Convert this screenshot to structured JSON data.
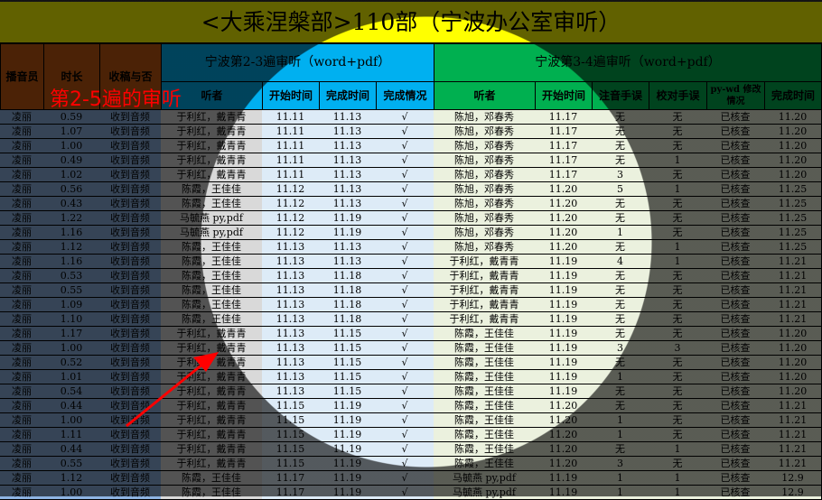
{
  "title": "<大乘涅槃部>110部（宁波办公室审听）",
  "colors": {
    "title_bg": "#ffff00",
    "left_header": "#c55a11",
    "group1_header": "#00b0f0",
    "group2_header": "#00b050",
    "group1_rows": "#ddebf7",
    "group2_rows": "#ebf1de",
    "annotation": "#ff0000"
  },
  "annotation": {
    "text": "第2-5遍的审听",
    "arrow_icon": "red-arrow"
  },
  "headers": {
    "recorder": "播音员",
    "duration": "时长",
    "receipt": "收稿与否",
    "group1": "宁波第2-3遍审听（word+pdf）",
    "group1_cols": [
      "听者",
      "开始时间",
      "完成时间",
      "完成情况"
    ],
    "group2": "宁波第3-4遍审听（word+pdf）",
    "group2_cols": [
      "听者",
      "开始时间",
      "注音手误",
      "校对手误",
      "py-wd 修改情况",
      "完成时间"
    ]
  },
  "rows": [
    [
      "凌丽",
      "0.59",
      "收到音频",
      "于利红，戴青青",
      "11.11",
      "11.13",
      "√",
      "陈旭，邓春秀",
      "11.17",
      "无",
      "无",
      "已核查",
      "11.20"
    ],
    [
      "凌丽",
      "1.07",
      "收到音频",
      "于利红，戴青青",
      "11.11",
      "11.13",
      "√",
      "陈旭，邓春秀",
      "11.17",
      "无",
      "无",
      "已核查",
      "11.20"
    ],
    [
      "凌丽",
      "1.00",
      "收到音频",
      "于利红，戴青青",
      "11.11",
      "11.13",
      "√",
      "陈旭，邓春秀",
      "11.17",
      "无",
      "无",
      "已核查",
      "11.20"
    ],
    [
      "凌丽",
      "0.49",
      "收到音频",
      "于利红，戴青青",
      "11.11",
      "11.13",
      "√",
      "陈旭，邓春秀",
      "11.17",
      "无",
      "1",
      "已核查",
      "11.20"
    ],
    [
      "凌丽",
      "1.02",
      "收到音频",
      "于利红，戴青青",
      "11.11",
      "11.13",
      "√",
      "陈旭，邓春秀",
      "11.17",
      "3",
      "无",
      "已核查",
      "11.20"
    ],
    [
      "凌丽",
      "0.56",
      "收到音频",
      "陈霞，王佳佳",
      "11.12",
      "11.13",
      "√",
      "陈旭，邓春秀",
      "11.20",
      "5",
      "1",
      "已核查",
      "11.25"
    ],
    [
      "凌丽",
      "0.43",
      "收到音频",
      "陈霞，王佳佳",
      "11.12",
      "11.13",
      "√",
      "陈旭，邓春秀",
      "11.20",
      "无",
      "无",
      "已核查",
      "11.25"
    ],
    [
      "凌丽",
      "1.22",
      "收到音频",
      "马毓燕 py,pdf",
      "11.12",
      "11.19",
      "√",
      "陈旭，邓春秀",
      "11.20",
      "无",
      "无",
      "已核查",
      "11.25"
    ],
    [
      "凌丽",
      "1.16",
      "收到音频",
      "马毓燕 py,pdf",
      "11.12",
      "11.19",
      "√",
      "陈旭，邓春秀",
      "11.20",
      "1",
      "无",
      "已核查",
      "11.25"
    ],
    [
      "凌丽",
      "1.12",
      "收到音频",
      "陈霞，王佳佳",
      "11.13",
      "11.13",
      "√",
      "陈旭，邓春秀",
      "11.20",
      "无",
      "1",
      "已核查",
      "11.25"
    ],
    [
      "凌丽",
      "1.16",
      "收到音频",
      "陈霞，王佳佳",
      "11.13",
      "11.13",
      "√",
      "于利红，戴青青",
      "11.19",
      "4",
      "1",
      "已核查",
      "11.21"
    ],
    [
      "凌丽",
      "0.53",
      "收到音频",
      "陈霞，王佳佳",
      "11.13",
      "11.18",
      "√",
      "于利红，戴青青",
      "11.19",
      "无",
      "无",
      "已核查",
      "11.21"
    ],
    [
      "凌丽",
      "0.55",
      "收到音频",
      "陈霞，王佳佳",
      "11.13",
      "11.18",
      "√",
      "于利红，戴青青",
      "11.19",
      "无",
      "无",
      "已核查",
      "11.21"
    ],
    [
      "凌丽",
      "1.09",
      "收到音频",
      "陈霞，王佳佳",
      "11.13",
      "11.18",
      "√",
      "于利红，戴青青",
      "11.19",
      "无",
      "无",
      "已核查",
      "11.21"
    ],
    [
      "凌丽",
      "1.10",
      "收到音频",
      "陈霞，王佳佳",
      "11.13",
      "11.18",
      "√",
      "于利红，戴青青",
      "11.19",
      "无",
      "无",
      "已核查",
      "11.21"
    ],
    [
      "凌丽",
      "1.17",
      "收到音频",
      "于利红，戴青青",
      "11.13",
      "11.15",
      "√",
      "陈霞，王佳佳",
      "11.19",
      "无",
      "无",
      "已核查",
      "11.20"
    ],
    [
      "凌丽",
      "1.00",
      "收到音频",
      "于利红，戴青青",
      "11.13",
      "11.15",
      "√",
      "陈霞，王佳佳",
      "11.19",
      "3",
      "3",
      "已核查",
      "11.20"
    ],
    [
      "凌丽",
      "0.52",
      "收到音频",
      "于利红，戴青青",
      "11.13",
      "11.15",
      "√",
      "陈霞，王佳佳",
      "11.19",
      "无",
      "无",
      "已核查",
      "11.20"
    ],
    [
      "凌丽",
      "1.01",
      "收到音频",
      "于利红，戴青青",
      "11.13",
      "11.15",
      "√",
      "陈霞，王佳佳",
      "11.19",
      "1",
      "无",
      "已核查",
      "11.20"
    ],
    [
      "凌丽",
      "0.54",
      "收到音频",
      "于利红，戴青青",
      "11.13",
      "11.15",
      "√",
      "陈霞，王佳佳",
      "11.19",
      "无",
      "无",
      "已核查",
      "11.20"
    ],
    [
      "凌丽",
      "0.44",
      "收到音频",
      "于利红，戴青青",
      "11.15",
      "11.19",
      "√",
      "陈霞，王佳佳",
      "11.20",
      "无",
      "无",
      "已核查",
      "11.21"
    ],
    [
      "凌丽",
      "1.00",
      "收到音频",
      "于利红，戴青青",
      "11.15",
      "11.19",
      "√",
      "陈霞，王佳佳",
      "11.20",
      "1",
      "无",
      "已核查",
      "11.21"
    ],
    [
      "凌丽",
      "1.11",
      "收到音频",
      "于利红，戴青青",
      "11.15",
      "11.19",
      "√",
      "陈霞，王佳佳",
      "11.20",
      "1",
      "无",
      "已核查",
      "11.21"
    ],
    [
      "凌丽",
      "0.44",
      "收到音频",
      "于利红，戴青青",
      "11.15",
      "11.19",
      "√",
      "陈霞，王佳佳",
      "11.20",
      "无",
      "1",
      "已核查",
      "11.21"
    ],
    [
      "凌丽",
      "0.55",
      "收到音频",
      "于利红，戴青青",
      "11.15",
      "11.19",
      "√",
      "陈霞，王佳佳",
      "11.20",
      "3",
      "无",
      "已核查",
      "11.21"
    ],
    [
      "凌丽",
      "1.12",
      "收到音频",
      "陈霞，王佳佳",
      "11.17",
      "11.19",
      "√",
      "马毓燕 py,pdf",
      "11.19",
      "1",
      "1",
      "已核查",
      "12.9"
    ],
    [
      "凌丽",
      "1.00",
      "收到音频",
      "陈霞，王佳佳",
      "11.17",
      "11.19",
      "√",
      "马毓燕 py,pdf",
      "11.19",
      "1",
      "1",
      "已核查",
      "12.9"
    ]
  ]
}
